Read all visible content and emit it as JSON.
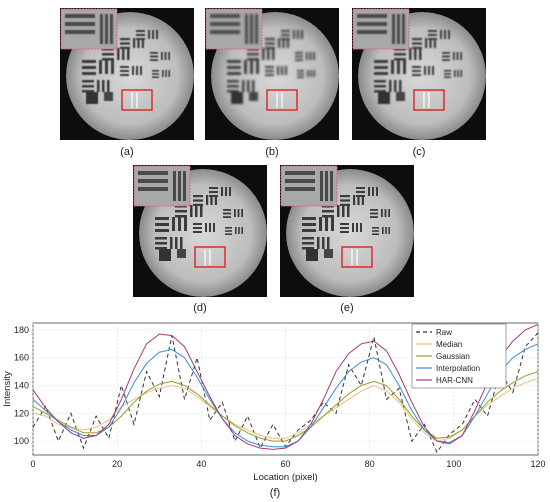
{
  "panels": [
    {
      "label": "(a)"
    },
    {
      "label": "(b)"
    },
    {
      "label": "(c)"
    },
    {
      "label": "(d)"
    },
    {
      "label": "(e)"
    }
  ],
  "figure": {
    "label": "(f)"
  },
  "chart_data": {
    "type": "line",
    "xlabel": "Location (pixel)",
    "ylabel": "Intensity",
    "xlim": [
      0,
      120
    ],
    "ylim": [
      90,
      185
    ],
    "xticks": [
      0,
      20,
      40,
      60,
      80,
      100,
      120
    ],
    "yticks": [
      100,
      120,
      140,
      160,
      180
    ],
    "grid": true,
    "legend_position": "top-right",
    "x": [
      0,
      3,
      6,
      9,
      12,
      15,
      18,
      21,
      24,
      27,
      30,
      33,
      36,
      39,
      42,
      45,
      48,
      51,
      54,
      57,
      60,
      63,
      66,
      69,
      72,
      75,
      78,
      81,
      84,
      87,
      90,
      93,
      96,
      99,
      102,
      105,
      108,
      111,
      114,
      117,
      120
    ],
    "series": [
      {
        "name": "Raw",
        "color": "#333333",
        "dash": "4,3",
        "values": [
          110,
          125,
          100,
          120,
          95,
          118,
          102,
          140,
          112,
          150,
          132,
          176,
          130,
          160,
          115,
          128,
          100,
          118,
          95,
          112,
          96,
          108,
          115,
          128,
          120,
          155,
          140,
          175,
          130,
          138,
          100,
          112,
          92,
          105,
          112,
          130,
          118,
          150,
          135,
          168,
          178
        ]
      },
      {
        "name": "Median",
        "color": "#e8c080",
        "dash": "",
        "values": [
          120,
          118,
          112,
          110,
          108,
          110,
          115,
          125,
          130,
          135,
          138,
          140,
          138,
          132,
          125,
          118,
          112,
          108,
          104,
          102,
          102,
          106,
          112,
          118,
          124,
          130,
          136,
          140,
          136,
          128,
          116,
          106,
          100,
          102,
          108,
          118,
          126,
          132,
          138,
          142,
          145
        ]
      },
      {
        "name": "Gaussian",
        "color": "#9b9b2a",
        "dash": "",
        "values": [
          125,
          120,
          115,
          110,
          106,
          106,
          110,
          118,
          128,
          136,
          141,
          143,
          140,
          134,
          126,
          118,
          111,
          106,
          102,
          100,
          100,
          104,
          110,
          118,
          126,
          134,
          140,
          143,
          140,
          130,
          118,
          108,
          102,
          103,
          108,
          118,
          128,
          136,
          142,
          147,
          150
        ]
      },
      {
        "name": "Interpolation",
        "color": "#3c8dd6",
        "dash": "",
        "values": [
          130,
          122,
          114,
          108,
          104,
          104,
          110,
          124,
          142,
          156,
          164,
          166,
          160,
          146,
          130,
          116,
          106,
          100,
          97,
          96,
          96,
          100,
          110,
          124,
          138,
          150,
          157,
          160,
          155,
          140,
          122,
          108,
          100,
          99,
          104,
          118,
          134,
          150,
          160,
          166,
          170
        ]
      },
      {
        "name": "HAR-CNN",
        "color": "#a33b78",
        "dash": "",
        "values": [
          137,
          124,
          114,
          106,
          102,
          104,
          112,
          130,
          152,
          170,
          177,
          176,
          168,
          150,
          132,
          116,
          104,
          98,
          95,
          94,
          95,
          100,
          112,
          130,
          150,
          163,
          170,
          172,
          165,
          148,
          128,
          110,
          100,
          98,
          104,
          122,
          142,
          160,
          172,
          180,
          184
        ]
      }
    ]
  }
}
